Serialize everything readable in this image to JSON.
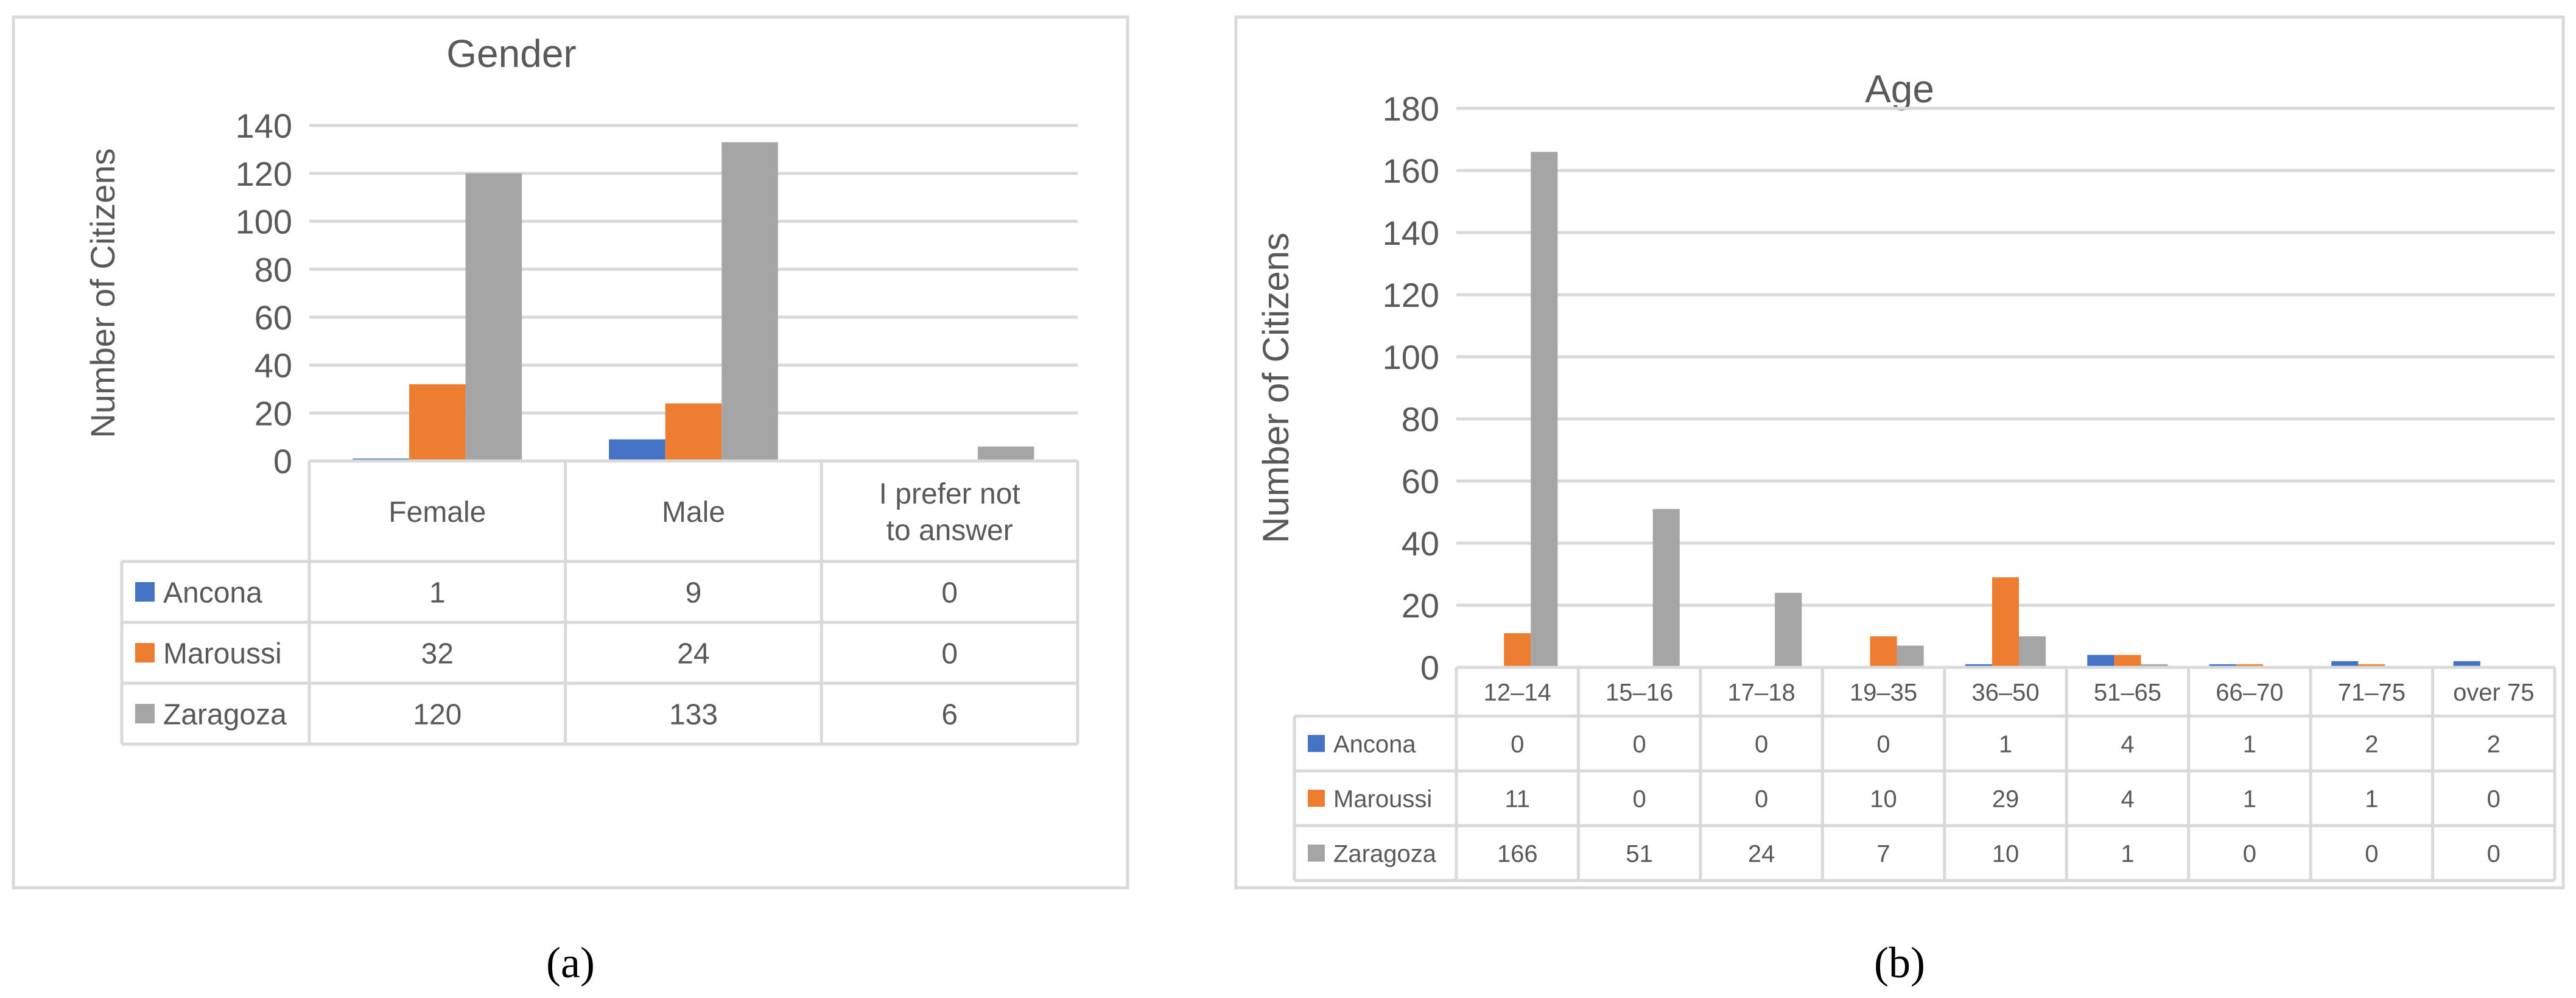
{
  "panel_labels": [
    "(a)",
    "(b)"
  ],
  "chart_data": [
    {
      "type": "bar",
      "title": "Gender",
      "ylabel": "Number of Citizens",
      "xlabel": "",
      "ylim": [
        0,
        140
      ],
      "yticks": [
        0,
        20,
        40,
        60,
        80,
        100,
        120,
        140
      ],
      "categories": [
        "Female",
        "Male",
        "I prefer not to answer"
      ],
      "series": [
        {
          "name": "Ancona",
          "color": "#4472C4",
          "values": [
            1,
            9,
            0
          ]
        },
        {
          "name": "Maroussi",
          "color": "#ED7D31",
          "values": [
            32,
            24,
            0
          ]
        },
        {
          "name": "Zaragoza",
          "color": "#A5A5A5",
          "values": [
            120,
            133,
            6
          ]
        }
      ],
      "grid": true,
      "legend": "data-table"
    },
    {
      "type": "bar",
      "title": "Age",
      "ylabel": "Number of Citizens",
      "xlabel": "",
      "ylim": [
        0,
        180
      ],
      "yticks": [
        0,
        20,
        40,
        60,
        80,
        100,
        120,
        140,
        160,
        180
      ],
      "categories": [
        "12–14",
        "15–16",
        "17–18",
        "19–35",
        "36–50",
        "51–65",
        "66–70",
        "71–75",
        "over 75"
      ],
      "series": [
        {
          "name": "Ancona",
          "color": "#4472C4",
          "values": [
            0,
            0,
            0,
            0,
            1,
            4,
            1,
            2,
            2
          ]
        },
        {
          "name": "Maroussi",
          "color": "#ED7D31",
          "values": [
            11,
            0,
            0,
            10,
            29,
            4,
            1,
            1,
            0
          ]
        },
        {
          "name": "Zaragoza",
          "color": "#A5A5A5",
          "values": [
            166,
            51,
            24,
            7,
            10,
            1,
            0,
            0,
            0
          ]
        }
      ],
      "grid": true,
      "legend": "data-table"
    }
  ]
}
